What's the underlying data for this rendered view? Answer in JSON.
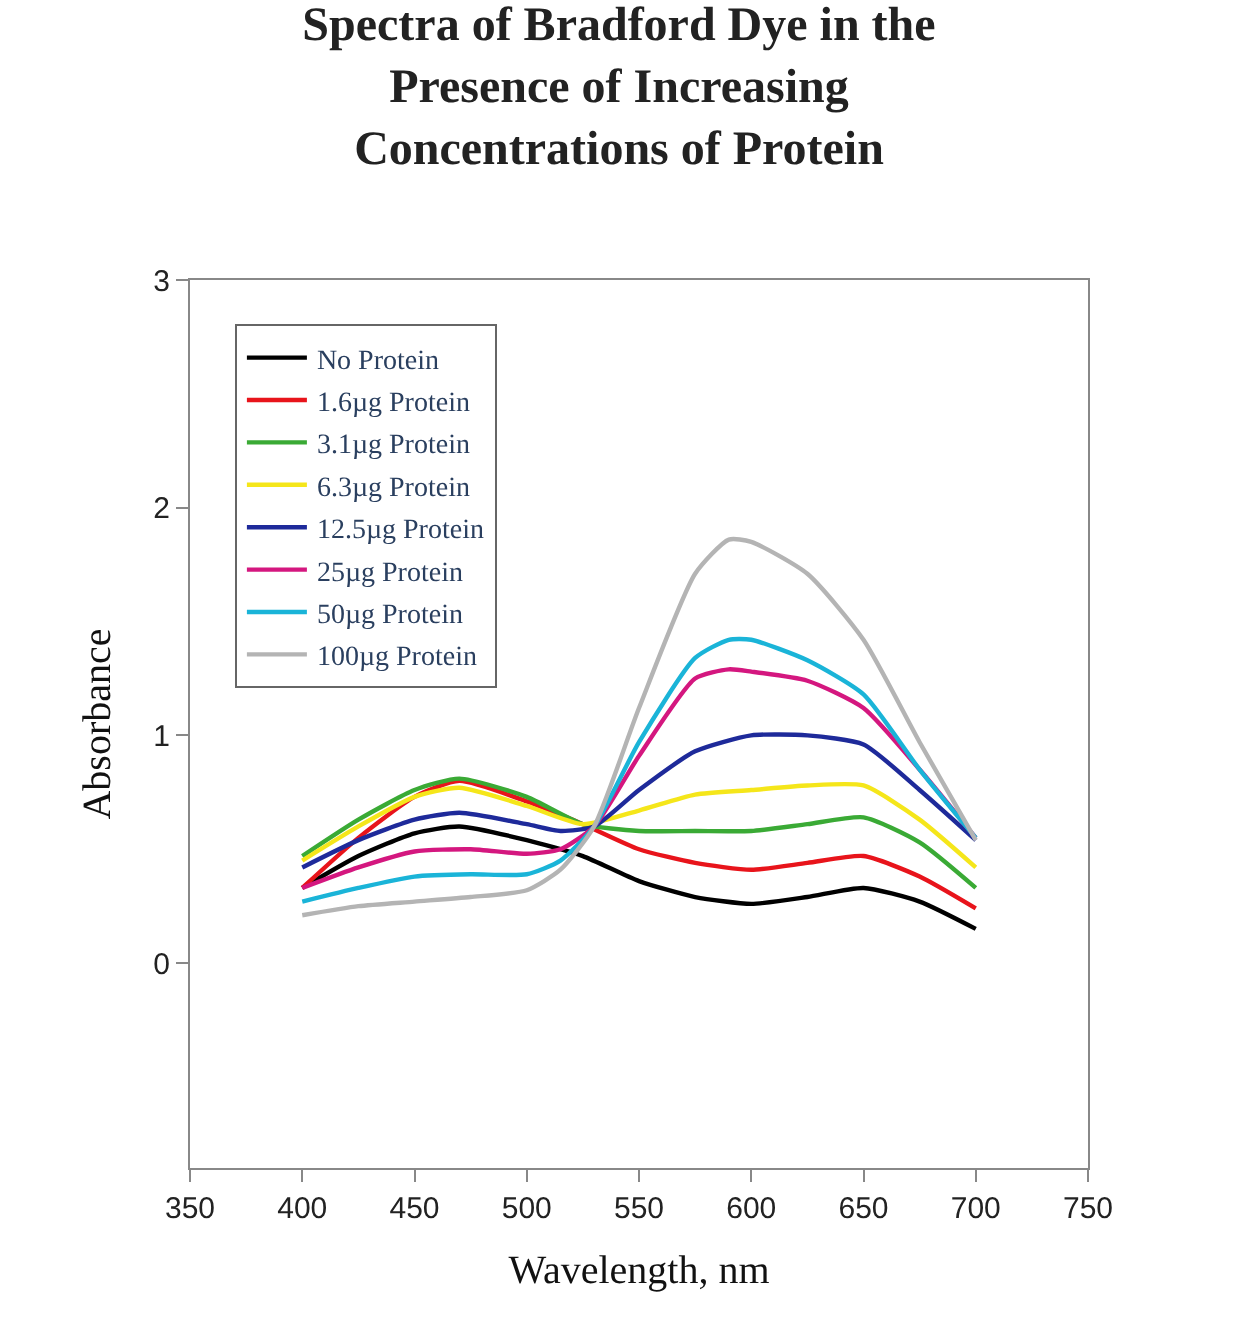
{
  "chart_data": {
    "type": "line",
    "title": "Spectra of Bradford Dye in the Presence of Increasing Concentrations of Protein",
    "xlabel": "Wavelength, nm",
    "ylabel": "Absorbance",
    "xlim": [
      350,
      750
    ],
    "xticks": [
      350,
      400,
      450,
      500,
      550,
      600,
      650,
      700,
      750
    ],
    "ylim": [
      -0.9,
      3
    ],
    "yticks": [
      0,
      1,
      2,
      3
    ],
    "legend": "top left",
    "marker": "none",
    "line_style": "solid",
    "series": [
      {
        "name": "No Protein",
        "color": "#000000",
        "x": [
          400,
          425,
          450,
          470,
          500,
          525,
          550,
          575,
          600,
          625,
          650,
          675,
          700
        ],
        "values": [
          0.33,
          0.47,
          0.57,
          0.6,
          0.54,
          0.47,
          0.36,
          0.29,
          0.26,
          0.29,
          0.33,
          0.27,
          0.15
        ]
      },
      {
        "name": "1.6µg Protein",
        "color": "#e8141b",
        "x": [
          400,
          425,
          450,
          470,
          500,
          525,
          550,
          575,
          600,
          625,
          650,
          675,
          700
        ],
        "values": [
          0.33,
          0.55,
          0.73,
          0.8,
          0.71,
          0.61,
          0.5,
          0.44,
          0.41,
          0.44,
          0.47,
          0.38,
          0.24
        ]
      },
      {
        "name": "3.1µg Protein",
        "color": "#3aaa35",
        "x": [
          400,
          425,
          450,
          470,
          500,
          525,
          550,
          575,
          600,
          625,
          650,
          675,
          700
        ],
        "values": [
          0.47,
          0.63,
          0.76,
          0.81,
          0.73,
          0.61,
          0.58,
          0.58,
          0.58,
          0.61,
          0.64,
          0.53,
          0.33
        ]
      },
      {
        "name": "6.3µg Protein",
        "color": "#f5e61a",
        "x": [
          400,
          425,
          450,
          470,
          500,
          525,
          550,
          575,
          600,
          625,
          650,
          675,
          700
        ],
        "values": [
          0.45,
          0.6,
          0.73,
          0.77,
          0.69,
          0.61,
          0.67,
          0.74,
          0.76,
          0.78,
          0.78,
          0.63,
          0.42
        ]
      },
      {
        "name": "12.5µg Protein",
        "color": "#1e2a9a",
        "x": [
          400,
          425,
          450,
          470,
          500,
          515,
          530,
          550,
          575,
          600,
          625,
          650,
          675,
          700
        ],
        "values": [
          0.42,
          0.54,
          0.63,
          0.66,
          0.61,
          0.58,
          0.6,
          0.76,
          0.93,
          1.0,
          1.0,
          0.96,
          0.76,
          0.54
        ]
      },
      {
        "name": "25µg Protein",
        "color": "#d4177f",
        "x": [
          400,
          425,
          450,
          475,
          500,
          515,
          530,
          550,
          575,
          590,
          600,
          625,
          650,
          675,
          700
        ],
        "values": [
          0.33,
          0.42,
          0.49,
          0.5,
          0.48,
          0.5,
          0.6,
          0.91,
          1.25,
          1.29,
          1.28,
          1.24,
          1.12,
          0.85,
          0.55
        ]
      },
      {
        "name": "50µg Protein",
        "color": "#1ab4d8",
        "x": [
          400,
          425,
          450,
          475,
          500,
          515,
          530,
          550,
          575,
          590,
          600,
          625,
          650,
          675,
          700
        ],
        "values": [
          0.27,
          0.33,
          0.38,
          0.39,
          0.39,
          0.45,
          0.6,
          0.97,
          1.34,
          1.42,
          1.42,
          1.33,
          1.18,
          0.85,
          0.55
        ]
      },
      {
        "name": "100µg Protein",
        "color": "#b4b4b4",
        "x": [
          400,
          425,
          450,
          475,
          500,
          515,
          530,
          550,
          575,
          590,
          600,
          625,
          650,
          675,
          700
        ],
        "values": [
          0.21,
          0.25,
          0.27,
          0.29,
          0.32,
          0.41,
          0.6,
          1.12,
          1.71,
          1.86,
          1.85,
          1.71,
          1.42,
          0.97,
          0.54
        ]
      }
    ]
  }
}
